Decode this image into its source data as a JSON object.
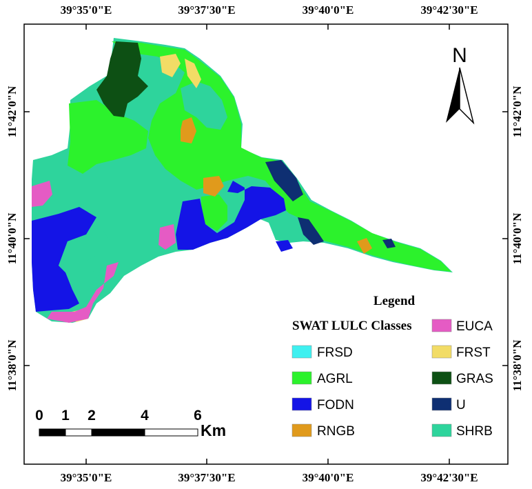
{
  "colors": {
    "FRSD": "#3ff0f0",
    "AGRL": "#2cf22c",
    "FODN": "#1414e6",
    "RNGB": "#e09a1c",
    "EUCA": "#e55bc4",
    "FRST": "#f2dc66",
    "GRAS": "#0d5014",
    "U": "#0e2f72",
    "SHRB": "#2ed49c"
  },
  "map": {
    "top_labels": [
      "39°35'0\"E",
      "39°37'30\"E",
      "39°40'0\"E",
      "39°42'30\"E"
    ],
    "bottom_labels": [
      "39°35'0\"E",
      "39°37'30\"E",
      "39°40'0\"E",
      "39°42'30\"E"
    ],
    "left_labels": [
      "11°42'0\"N",
      "11°40'0\"N",
      "11°38'0\"N"
    ],
    "right_labels": [
      "11°42'0\"N",
      "11°40'0\"N",
      "11°38'0\"N"
    ],
    "north_label": "N"
  },
  "legend": {
    "title": "Legend",
    "subtitle": "SWAT LULC Classes",
    "left_items": [
      {
        "code": "FRSD",
        "icon": "color-swatch"
      },
      {
        "code": "AGRL",
        "icon": "color-swatch"
      },
      {
        "code": "FODN",
        "icon": "color-swatch"
      },
      {
        "code": "RNGB",
        "icon": "color-swatch"
      }
    ],
    "right_items": [
      {
        "code": "EUCA",
        "icon": "color-swatch"
      },
      {
        "code": "FRST",
        "icon": "color-swatch"
      },
      {
        "code": "GRAS",
        "icon": "color-swatch"
      },
      {
        "code": "U",
        "icon": "color-swatch"
      },
      {
        "code": "SHRB",
        "icon": "color-swatch"
      }
    ]
  },
  "scale_bar": {
    "ticks": [
      "0",
      "1",
      "2",
      "4",
      "6"
    ],
    "unit": "Km"
  }
}
